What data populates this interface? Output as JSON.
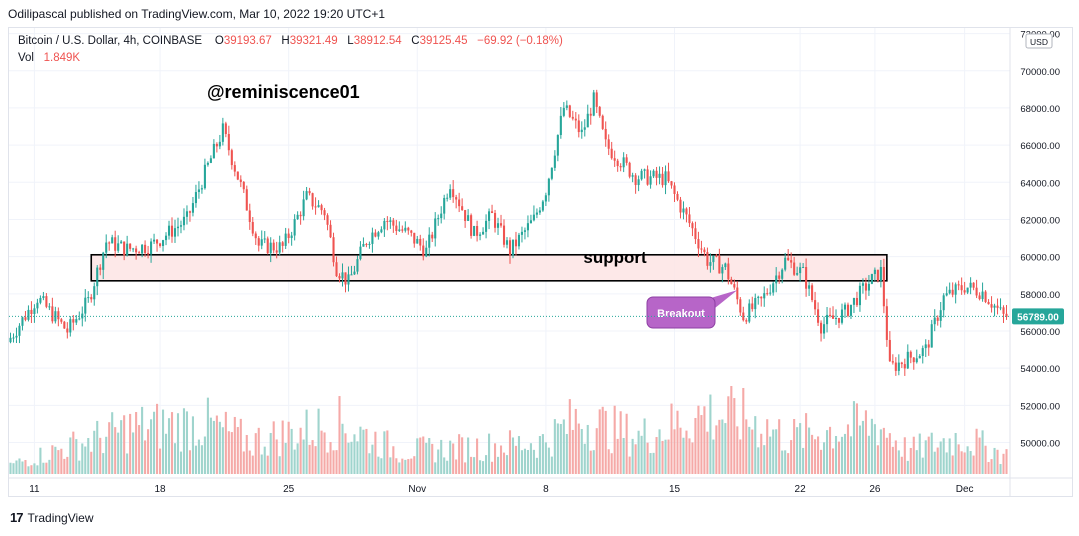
{
  "publisher_line": "Odilipascal published on TradingView.com, Mar 10, 2022 19:20 UTC+1",
  "legend": {
    "symbol": "Bitcoin / U.S. Dollar, 4h, COINBASE",
    "open_label": "O",
    "open": "39193.67",
    "high_label": "H",
    "high": "39321.49",
    "low_label": "L",
    "low": "38912.54",
    "close_label": "C",
    "close": "39125.45",
    "change": "−69.92 (−0.18%)",
    "vol_label": "Vol",
    "vol": "1.849K"
  },
  "footer": {
    "logo": "17",
    "brand": "TradingView"
  },
  "colors": {
    "up": "#26a69a",
    "down": "#ef5350",
    "vol_up": "#9fd4cd",
    "vol_down": "#f5a9a7",
    "zone_fill": "#fde4e4",
    "callout": "#b765c8",
    "price_tag": "#26a69a"
  },
  "chart_data": {
    "type": "candlestick",
    "currency_label": "USD",
    "y_ticks": [
      "72000.00",
      "70000.00",
      "68000.00",
      "66000.00",
      "64000.00",
      "62000.00",
      "60000.00",
      "58000.00",
      "56000.00",
      "54000.00",
      "52000.00",
      "50000.00"
    ],
    "ylim": [
      48200,
      72300
    ],
    "x_ticks": [
      "11",
      "18",
      "25",
      "Nov",
      "8",
      "15",
      "22",
      "26",
      "Dec"
    ],
    "x_tick_positions_idx": [
      8,
      50,
      93,
      136,
      179,
      222,
      264,
      289,
      319
    ],
    "last_price": "56789.00",
    "annotations": {
      "watermark": "@reminiscence01",
      "zone_label": "support",
      "callout": "Breakout"
    },
    "support_zone": [
      58700,
      60100
    ],
    "zone_start_idx": 27,
    "zone_end_idx": 293,
    "breakout_idx": 243,
    "anchors": [
      [
        0,
        55400
      ],
      [
        10,
        57800
      ],
      [
        20,
        56000
      ],
      [
        27,
        57600
      ],
      [
        33,
        60800
      ],
      [
        40,
        60400
      ],
      [
        48,
        60600
      ],
      [
        60,
        62000
      ],
      [
        66,
        64500
      ],
      [
        72,
        66800
      ],
      [
        78,
        63800
      ],
      [
        84,
        60600
      ],
      [
        92,
        60500
      ],
      [
        96,
        61800
      ],
      [
        100,
        63200
      ],
      [
        106,
        62400
      ],
      [
        110,
        59400
      ],
      [
        114,
        58600
      ],
      [
        120,
        60900
      ],
      [
        126,
        62000
      ],
      [
        134,
        61200
      ],
      [
        140,
        60300
      ],
      [
        148,
        64000
      ],
      [
        156,
        61200
      ],
      [
        162,
        62200
      ],
      [
        168,
        60300
      ],
      [
        176,
        62000
      ],
      [
        180,
        63600
      ],
      [
        186,
        68000
      ],
      [
        192,
        66600
      ],
      [
        196,
        68400
      ],
      [
        200,
        66000
      ],
      [
        210,
        64300
      ],
      [
        220,
        64200
      ],
      [
        228,
        61800
      ],
      [
        234,
        59800
      ],
      [
        240,
        59400
      ],
      [
        246,
        56800
      ],
      [
        252,
        57600
      ],
      [
        260,
        59800
      ],
      [
        266,
        59100
      ],
      [
        272,
        56300
      ],
      [
        280,
        57000
      ],
      [
        288,
        58600
      ],
      [
        292,
        59200
      ],
      [
        295,
        54000
      ],
      [
        302,
        54600
      ],
      [
        307,
        55000
      ],
      [
        313,
        57800
      ],
      [
        320,
        58400
      ],
      [
        326,
        58100
      ],
      [
        333,
        56789
      ]
    ],
    "volume_profile": [
      [
        0,
        0.1
      ],
      [
        25,
        0.35
      ],
      [
        40,
        0.5
      ],
      [
        65,
        0.55
      ],
      [
        80,
        0.35
      ],
      [
        110,
        0.55
      ],
      [
        130,
        0.25
      ],
      [
        160,
        0.3
      ],
      [
        178,
        0.35
      ],
      [
        190,
        0.6
      ],
      [
        210,
        0.4
      ],
      [
        232,
        0.65
      ],
      [
        246,
        0.6
      ],
      [
        260,
        0.4
      ],
      [
        290,
        0.55
      ],
      [
        300,
        0.25
      ],
      [
        318,
        0.4
      ],
      [
        333,
        0.2
      ]
    ]
  }
}
